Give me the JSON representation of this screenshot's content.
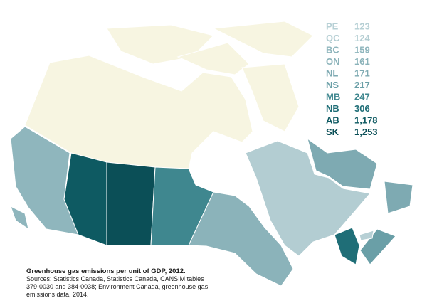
{
  "chart_data": {
    "type": "choropleth",
    "title": "Greenhouse gas emissions per unit of GDP, 2012.",
    "source": "Sources: Statistics Canada, Statistics Canada, CANSIM tables 379-0030 and 384-0038; Environment Canada, greenhouse gas emissions data, 2014.",
    "categories": [
      "PE",
      "QC",
      "BC",
      "ON",
      "NL",
      "NS",
      "MB",
      "NB",
      "AB",
      "SK"
    ],
    "values": [
      123,
      124,
      159,
      161,
      171,
      217,
      247,
      306,
      1178,
      1253
    ],
    "value_labels": [
      "123",
      "124",
      "159",
      "161",
      "171",
      "217",
      "247",
      "306",
      "1,178",
      "1,253"
    ],
    "colors": [
      "#b7d0d5",
      "#b3cdd2",
      "#8fb6bd",
      "#8bb3ba",
      "#7eaab2",
      "#6a9fa7",
      "#3f878f",
      "#1f6e77",
      "#0e5a62",
      "#0b4f57"
    ]
  }
}
